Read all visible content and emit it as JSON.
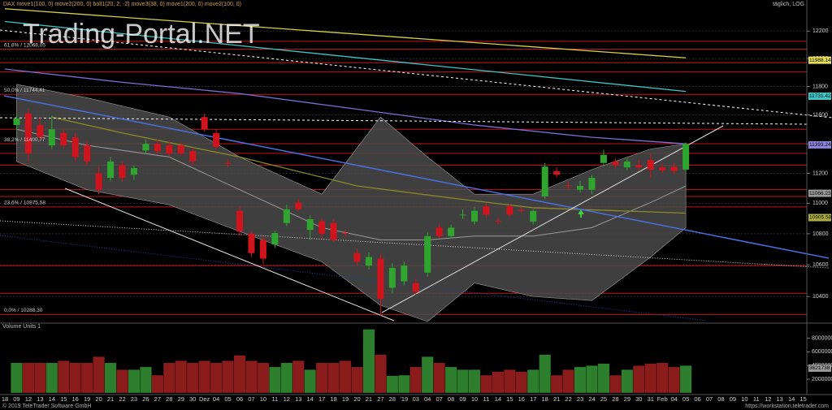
{
  "chart_data": {
    "type": "candlestick",
    "title": "DAX move1(100, 0) move2(200, 0) boll1(20, 2, -2) move3(38, 0) move1(200, 0) move2(100, 0)",
    "period_label": "täglich, LOG",
    "watermark": "Trading-Portal.NET",
    "categories": [
      "18",
      "09",
      "12",
      "13",
      "14",
      "15",
      "16",
      "19",
      "20",
      "21",
      "22",
      "23",
      "26",
      "27",
      "28",
      "29",
      "30",
      "Dez",
      "04",
      "05",
      "06",
      "07",
      "10",
      "11",
      "12",
      "13",
      "14",
      "17",
      "18",
      "19",
      "20",
      "21",
      "27",
      "28",
      "'19",
      "03",
      "04",
      "07",
      "08",
      "09",
      "10",
      "11",
      "14",
      "15",
      "16",
      "17",
      "18",
      "21",
      "22",
      "23",
      "24",
      "25",
      "28",
      "29",
      "30",
      "31",
      "Feb",
      "04",
      "05",
      "06",
      "07",
      "08",
      "09",
      "10",
      "11",
      "12",
      "13",
      "14",
      "15"
    ],
    "open": [
      null,
      11530,
      11610,
      11530,
      11390,
      11475,
      11445,
      11390,
      11200,
      11170,
      11255,
      11190,
      11355,
      11400,
      11390,
      11390,
      11350,
      11585,
      11475,
      11270,
      10950,
      10800,
      10760,
      10730,
      10870,
      11005,
      10825,
      10880,
      10870,
      10805,
      10675,
      10595,
      10640,
      10455,
      10495,
      10485,
      10550,
      10840,
      10785,
      10920,
      10880,
      10980,
      10885,
      10980,
      10955,
      10880,
      11045,
      11215,
      11120,
      11090,
      11090,
      11270,
      11280,
      11240,
      11255,
      11290,
      11240,
      11245,
      11225,
      null,
      null,
      null,
      null,
      null,
      null,
      null,
      null,
      null,
      null
    ],
    "high": [
      null,
      11605,
      11640,
      11585,
      11595,
      11500,
      11475,
      11420,
      11245,
      11310,
      11280,
      11255,
      11430,
      11430,
      11420,
      11410,
      11375,
      11610,
      11500,
      11295,
      10980,
      10815,
      10785,
      10820,
      10990,
      11030,
      10920,
      10900,
      10895,
      10830,
      10705,
      10680,
      10670,
      10610,
      10620,
      10510,
      10810,
      10865,
      10860,
      10960,
      10975,
      11000,
      10905,
      10995,
      10975,
      10960,
      11270,
      11240,
      11145,
      11150,
      11190,
      11360,
      11300,
      11300,
      11290,
      11330,
      11265,
      11270,
      11410,
      null,
      null,
      null,
      null,
      null,
      null,
      null,
      null,
      null,
      null
    ],
    "low": [
      null,
      11495,
      11280,
      11420,
      11365,
      11365,
      11280,
      11255,
      11060,
      11145,
      11145,
      11155,
      11330,
      11330,
      11310,
      11320,
      11255,
      11485,
      11365,
      11240,
      10785,
      10650,
      10605,
      10710,
      10850,
      10945,
      10760,
      10770,
      10745,
      10780,
      10600,
      10570,
      10280,
      10420,
      10470,
      10410,
      10525,
      10770,
      10770,
      10895,
      10860,
      10905,
      10860,
      10910,
      10935,
      10860,
      11030,
      11170,
      11090,
      11070,
      11060,
      11250,
      11235,
      11220,
      11220,
      11170,
      11200,
      11195,
      11215,
      null,
      null,
      null,
      null,
      null,
      null,
      null,
      null,
      null,
      null
    ],
    "close": [
      null,
      11575,
      11335,
      11445,
      11500,
      11390,
      11310,
      11280,
      11090,
      11280,
      11170,
      11235,
      11400,
      11350,
      11335,
      11335,
      11280,
      11500,
      11380,
      11265,
      10815,
      10675,
      10640,
      10805,
      10960,
      10960,
      10895,
      10800,
      10760,
      10800,
      10620,
      10650,
      10385,
      10580,
      10595,
      10430,
      10785,
      10785,
      10840,
      10925,
      10950,
      10925,
      10880,
      10925,
      10950,
      10950,
      11245,
      11190,
      11115,
      11115,
      11170,
      11325,
      11255,
      11280,
      11240,
      11225,
      11220,
      11215,
      11400,
      null,
      null,
      null,
      null,
      null,
      null,
      null,
      null,
      null,
      null
    ],
    "volume": [
      null,
      4400000,
      4400000,
      4400000,
      4400000,
      4700000,
      4400000,
      4400000,
      5300000,
      4400000,
      3400000,
      3400000,
      3800000,
      2600000,
      4400000,
      4700000,
      4400000,
      4700000,
      4400000,
      4700000,
      5500000,
      4700000,
      4400000,
      3800000,
      4400000,
      4700000,
      3400000,
      4400000,
      4400000,
      4700000,
      3800000,
      9300000,
      5600000,
      2500000,
      2600000,
      3800000,
      5300000,
      4400000,
      3800000,
      3400000,
      3400000,
      2600000,
      3100000,
      3400000,
      3100000,
      3400000,
      5600000,
      2600000,
      3400000,
      3800000,
      4000000,
      4300000,
      2600000,
      3400000,
      4000000,
      4300000,
      4400000,
      3800000,
      4000000,
      null,
      null,
      null,
      null,
      null,
      null,
      null,
      null,
      null,
      null
    ],
    "colors": {
      "up": "#2fa52f",
      "down": "#d0141e",
      "volume_up": "#2d7f2d",
      "volume_down": "#8a1c1c"
    },
    "log_scale": true,
    "grid": true,
    "ylim": [
      10240,
      12430
    ],
    "yticks": [
      10400,
      10600,
      10800,
      11000,
      11200,
      11400,
      11600,
      11800,
      12000,
      12200
    ],
    "volume_label": "Volume Units 1",
    "volume_ylim": [
      0,
      9600000
    ],
    "volume_yticks": [
      2000000,
      4000000,
      6000000,
      8000000
    ],
    "volume_tag": 3621738,
    "bands": {
      "color": "#9a9a9a",
      "fill": "#4a4a4a",
      "x": [
        1,
        7,
        14,
        20,
        27,
        32,
        36,
        40,
        45,
        50,
        55,
        58
      ],
      "upper": [
        11815,
        11720,
        11585,
        11310,
        11060,
        11585,
        11310,
        11060,
        11060,
        11225,
        11365,
        11400
      ],
      "lower": [
        11280,
        11090,
        10990,
        10815,
        10620,
        10345,
        10245,
        10485,
        10400,
        10375,
        10650,
        10840
      ],
      "middle": [
        11500,
        11390,
        11310,
        11090,
        10840,
        10760,
        10760,
        10785,
        10785,
        10840,
        11005,
        11115
      ]
    },
    "lines": [
      {
        "color": "#d8d04a",
        "x": [
          0,
          58
        ],
        "values": [
          12365,
          12005
        ]
      },
      {
        "color": "#3fc6c6",
        "x": [
          0,
          58
        ],
        "values": [
          12270,
          11765
        ]
      },
      {
        "color": "#7b6fd8",
        "x": [
          0,
          10,
          20,
          30,
          40,
          50,
          58
        ],
        "values": [
          11925,
          11830,
          11750,
          11640,
          11530,
          11445,
          11400
        ]
      },
      {
        "color": "#8a8a2a",
        "x": [
          4,
          10,
          20,
          30,
          38,
          45,
          58
        ],
        "values": [
          11585,
          11475,
          11310,
          11115,
          11035,
          10970,
          10935
        ]
      }
    ],
    "levels": [
      {
        "value": 12068.05,
        "label": "61,8% / 12068,05"
      },
      {
        "value": 11744.41,
        "label": "50,0% / 11744,41"
      },
      {
        "value": 11400.77,
        "label": "38,2% / 11400,77"
      },
      {
        "value": 10975.58,
        "label": "23,6% / 10975,58"
      },
      {
        "value": 10288.3,
        "label": "0,0% / 10288,30"
      }
    ],
    "hline_color": "#c0141c",
    "hlines": [
      12125,
      11970,
      11905,
      11500,
      11335,
      11255,
      11090,
      11045,
      10595,
      10420
    ],
    "price_tags": [
      {
        "value": 11988.14,
        "color": "#e8e05a"
      },
      {
        "value": 11731.42,
        "color": "#3fc6c6"
      },
      {
        "value": 11393.24,
        "color": "#8f86e0"
      },
      {
        "value": 11066.23,
        "color": "#9a9a9a"
      },
      {
        "value": 10905.58,
        "color": "#b0b040"
      }
    ],
    "footer": {
      "copyright": "© 2019 TeleTrader Software GmbH",
      "url": "https://workstation.teletrader.com"
    }
  }
}
